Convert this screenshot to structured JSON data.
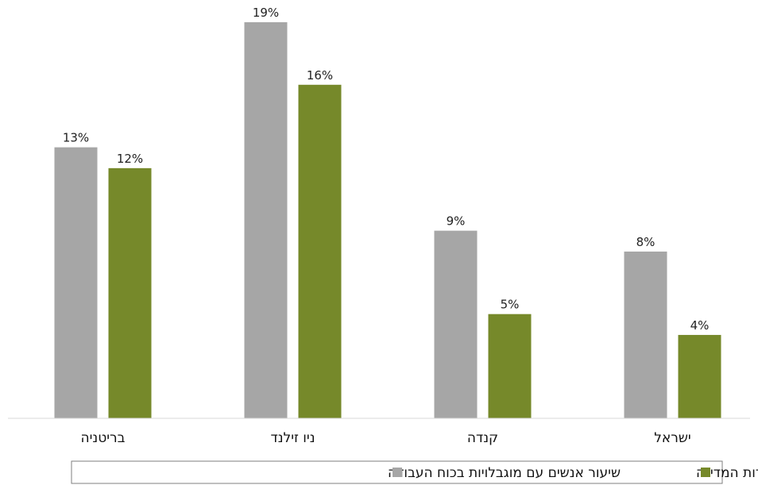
{
  "chart_data": {
    "type": "bar",
    "categories": [
      "בריטניה",
      "ניו זילנד",
      "קנדה",
      "ישראל"
    ],
    "series": [
      {
        "name": "שיעור אנשים עם מוגבלויות בכוח העבודה",
        "values": [
          13,
          19,
          9,
          8
        ],
        "labels": [
          "13%",
          "19%",
          "9%",
          "8%"
        ],
        "color": "#a6a6a6"
      },
      {
        "name": "שיעור אנשים עם מוגבלויות בשירות המדינה",
        "values": [
          12,
          16,
          5,
          4
        ],
        "labels": [
          "12%",
          "16%",
          "5%",
          "4%"
        ],
        "color": "#76892a"
      }
    ],
    "ylim": [
      0,
      19
    ],
    "grid": false,
    "legend_position": "bottom"
  }
}
